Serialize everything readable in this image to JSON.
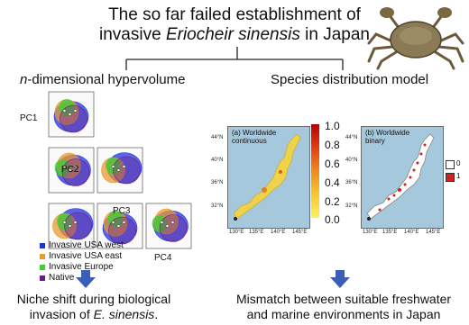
{
  "title": {
    "line1": "The so far failed establishment of",
    "line2_pre": "invasive ",
    "line2_species": "Eriocheir sinensis",
    "line2_post": " in Japan"
  },
  "left_section": {
    "title_italic": "n",
    "title_rest": "-dimensional hypervolume",
    "pc_labels": [
      "PC1",
      "PC2",
      "PC3",
      "PC4"
    ],
    "legend": [
      {
        "label": "Invasive USA west",
        "color": "#2233dd"
      },
      {
        "label": "Invasive USA east",
        "color": "#e89a30"
      },
      {
        "label": "Invasive Europe",
        "color": "#44cc33"
      },
      {
        "label": "Native",
        "color": "#6a1a8a"
      }
    ]
  },
  "right_section": {
    "title": "Species distribution model",
    "map_a_label_1": "(a) Worldwide",
    "map_a_label_2": "continuous",
    "map_b_label_1": "(b) Worldwide",
    "map_b_label_2": "binary",
    "lat_ticks": [
      "44°N",
      "40°N",
      "36°N",
      "32°N"
    ],
    "lon_ticks": [
      "130°E",
      "135°E",
      "140°E",
      "145°E"
    ],
    "colorbar_ticks": [
      "1.0",
      "0.8",
      "0.6",
      "0.4",
      "0.2",
      "0.0"
    ],
    "binary_legend": [
      {
        "label": "0",
        "color": "#ffffff"
      },
      {
        "label": "1",
        "color": "#cc2222"
      }
    ]
  },
  "conclusion_left": {
    "line1": "Niche shift during biological",
    "line2_pre": "invasion of ",
    "line2_species": "E. sinensis",
    "line2_post": "."
  },
  "conclusion_right": {
    "line1": "Mismatch between suitable freshwater",
    "line2": "and marine environments in Japan"
  },
  "colors": {
    "arrow": "#3b5fb8",
    "map_sea": "#a6c8dd"
  }
}
